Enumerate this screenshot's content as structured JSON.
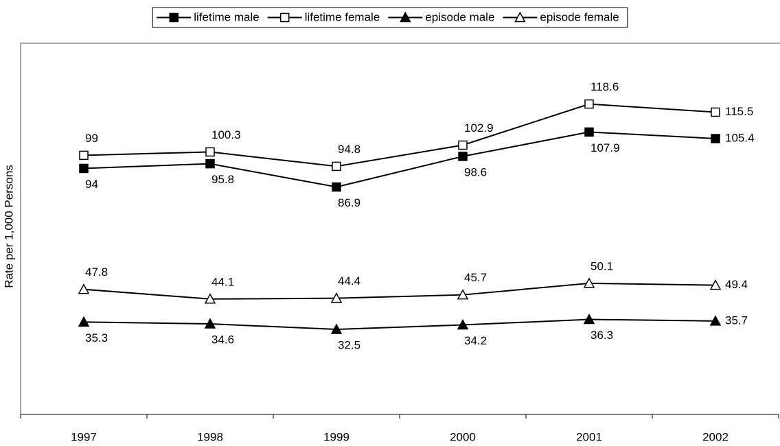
{
  "chart_data": {
    "type": "line",
    "y_label": "Rate per 1,000 Persons",
    "categories": [
      "1997",
      "1998",
      "1999",
      "2000",
      "2001",
      "2002"
    ],
    "series": [
      {
        "name": "lifetime male",
        "color": "#000000",
        "marker": "filled-square",
        "values": [
          94,
          95.8,
          86.9,
          98.6,
          107.9,
          105.4
        ]
      },
      {
        "name": "lifetime female",
        "color": "#000000",
        "marker": "open-square",
        "values": [
          99,
          100.3,
          94.8,
          102.9,
          118.6,
          115.5
        ]
      },
      {
        "name": "episode male",
        "color": "#000000",
        "marker": "filled-triangle",
        "values": [
          35.3,
          34.6,
          32.5,
          34.2,
          36.3,
          35.7
        ]
      },
      {
        "name": "episode female",
        "color": "#000000",
        "marker": "open-triangle",
        "values": [
          47.8,
          44.1,
          44.4,
          45.7,
          50.1,
          49.4
        ]
      }
    ],
    "ylim": [
      0,
      140
    ],
    "legend": "top"
  }
}
